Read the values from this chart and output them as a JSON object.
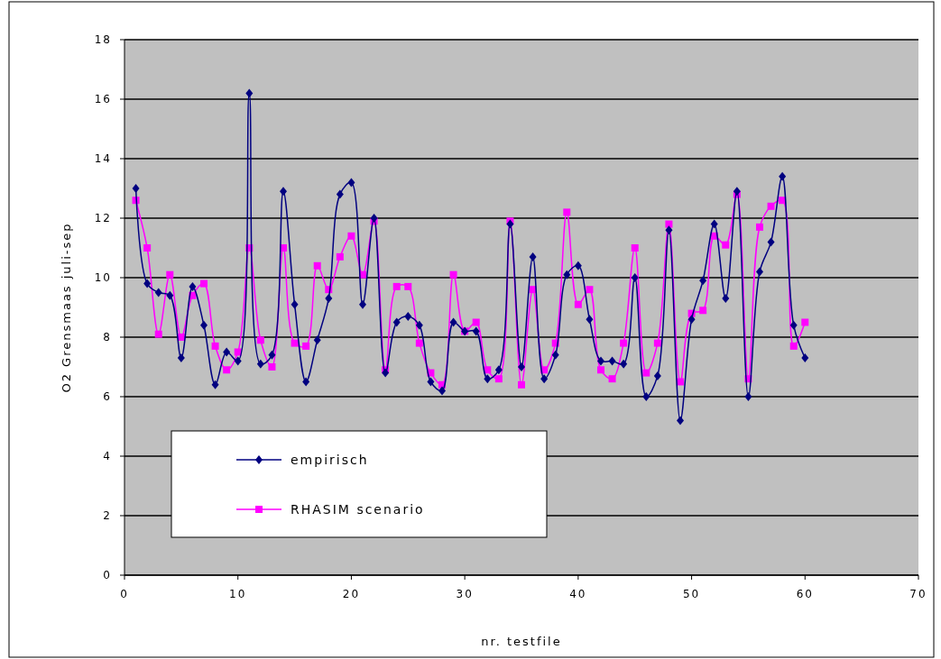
{
  "chart_data": {
    "type": "line",
    "xlabel": "nr. testfile",
    "ylabel": "O2 Grensmaas juli-sep",
    "xlim": [
      0,
      70
    ],
    "xticks": [
      0,
      10,
      20,
      30,
      40,
      50,
      60,
      70
    ],
    "ylim": [
      0,
      18
    ],
    "yticks": [
      0,
      2,
      4,
      6,
      8,
      10,
      12,
      14,
      16,
      18
    ],
    "grid": "y",
    "legend": "bottom left",
    "x": [
      1,
      2,
      3,
      4,
      5,
      6,
      7,
      8,
      9,
      10,
      11,
      12,
      13,
      14,
      15,
      16,
      17,
      18,
      19,
      20,
      21,
      22,
      23,
      24,
      25,
      26,
      27,
      28,
      29,
      30,
      31,
      32,
      33,
      34,
      35,
      36,
      37,
      38,
      39,
      40,
      41,
      42,
      43,
      44,
      45,
      46,
      47,
      48,
      49,
      50,
      51,
      52,
      53,
      54,
      55,
      56,
      57,
      58,
      59,
      60
    ],
    "series": [
      {
        "name": "empirisch",
        "color": "#000080",
        "marker": "diamond",
        "values": [
          13.0,
          9.8,
          9.5,
          9.4,
          7.3,
          9.7,
          8.4,
          6.4,
          7.5,
          7.2,
          16.2,
          7.1,
          7.4,
          12.9,
          9.1,
          6.5,
          7.9,
          9.3,
          12.8,
          13.2,
          9.1,
          12.0,
          6.8,
          8.5,
          8.7,
          8.4,
          6.5,
          6.2,
          8.5,
          8.2,
          8.2,
          6.6,
          6.9,
          11.8,
          7.0,
          10.7,
          6.6,
          7.4,
          10.1,
          10.4,
          8.6,
          7.2,
          7.2,
          7.1,
          10.0,
          6.0,
          6.7,
          11.6,
          5.2,
          8.6,
          9.9,
          11.8,
          9.3,
          12.9,
          6.0,
          10.2,
          11.2,
          13.4,
          8.4,
          7.3
        ]
      },
      {
        "name": "RHASIM scenario",
        "color": "#ff00ff",
        "marker": "square",
        "values": [
          12.6,
          11.0,
          8.1,
          10.1,
          8.0,
          9.4,
          9.8,
          7.7,
          6.9,
          7.5,
          11.0,
          7.9,
          7.0,
          11.0,
          7.8,
          7.7,
          10.4,
          9.6,
          10.7,
          11.4,
          10.1,
          11.9,
          6.9,
          9.7,
          9.7,
          7.8,
          6.8,
          6.4,
          10.1,
          8.2,
          8.5,
          6.9,
          6.6,
          11.9,
          6.4,
          9.6,
          6.9,
          7.8,
          12.2,
          9.1,
          9.6,
          6.9,
          6.6,
          7.8,
          11.0,
          6.8,
          7.8,
          11.8,
          6.5,
          8.8,
          8.9,
          11.4,
          11.1,
          12.8,
          6.6,
          11.7,
          12.4,
          12.6,
          7.7,
          8.5
        ]
      }
    ]
  }
}
